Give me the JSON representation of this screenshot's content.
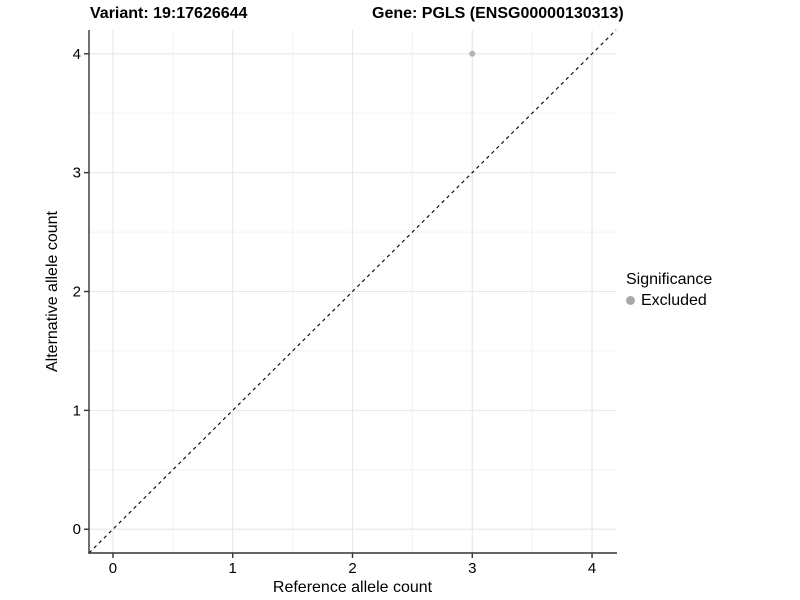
{
  "chart_data": {
    "type": "scatter",
    "title_left": "Variant: 19:17626644",
    "title_right": "Gene: PGLS (ENSG00000130313)",
    "xlabel": "Reference allele count",
    "ylabel": "Alternative allele count",
    "xlim": [
      -0.2,
      4.2
    ],
    "ylim": [
      -0.2,
      4.2
    ],
    "xticks": [
      0,
      1,
      2,
      3,
      4
    ],
    "yticks": [
      0,
      1,
      2,
      3,
      4
    ],
    "xtick_labels": [
      "0",
      "1",
      "2",
      "3",
      "4"
    ],
    "ytick_labels": [
      "0",
      "1",
      "2",
      "3",
      "4"
    ],
    "x_minor": [
      0.5,
      1.5,
      2.5,
      3.5
    ],
    "y_minor": [
      0.5,
      1.5,
      2.5,
      3.5
    ],
    "grid": "major+minor",
    "series": [
      {
        "name": "Excluded",
        "color": "#b3b3b3"
      }
    ],
    "points": [
      {
        "x": 3,
        "y": 4,
        "series": "Excluded"
      }
    ],
    "reference_line": {
      "type": "identity",
      "style": "dashed",
      "color": "#000000"
    },
    "legend": {
      "title": "Significance",
      "position": "right",
      "items": [
        {
          "label": "Excluded",
          "color": "#a9a9a9"
        }
      ]
    }
  },
  "colors": {
    "background": "#ffffff",
    "grid_major": "#e7e7e7",
    "grid_minor": "#f3f3f3",
    "axis": "#333333",
    "text": "#000000",
    "dashed_line": "#000000"
  }
}
